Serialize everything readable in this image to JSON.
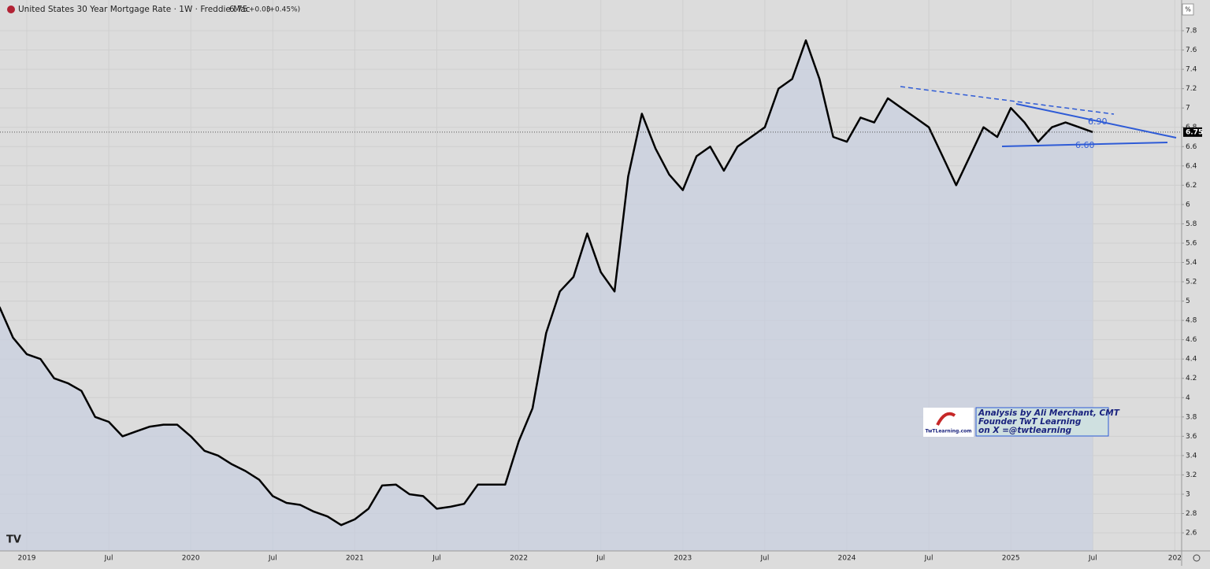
{
  "chart_data": {
    "type": "line",
    "title": "United States 30 Year Mortgage Rate · 1W · Freddie Mac",
    "last_value": 6.75,
    "change": "+0.03",
    "change_pct": "(+0.45%)",
    "unit": "%",
    "annotations": [
      "Analysis by Ali Merchant, CMT",
      "Founder TwT Learning",
      "on X =@twtlearning"
    ],
    "logo_text": "TwTLearning.com",
    "trendline_labels": [
      "6.90",
      "6.60"
    ],
    "x": [
      "2018-11",
      "2018-12",
      "2019-01",
      "2019-02",
      "2019-03",
      "2019-04",
      "2019-05",
      "2019-06",
      "2019-07",
      "2019-08",
      "2019-09",
      "2019-10",
      "2019-11",
      "2019-12",
      "2020-01",
      "2020-02",
      "2020-03",
      "2020-04",
      "2020-05",
      "2020-06",
      "2020-07",
      "2020-08",
      "2020-09",
      "2020-10",
      "2020-11",
      "2020-12",
      "2021-01",
      "2021-02",
      "2021-03",
      "2021-04",
      "2021-05",
      "2021-06",
      "2021-07",
      "2021-08",
      "2021-09",
      "2021-10",
      "2021-11",
      "2021-12",
      "2022-01",
      "2022-02",
      "2022-03",
      "2022-04",
      "2022-05",
      "2022-06",
      "2022-07",
      "2022-08",
      "2022-09",
      "2022-10",
      "2022-11",
      "2022-12",
      "2023-01",
      "2023-02",
      "2023-03",
      "2023-04",
      "2023-05",
      "2023-06",
      "2023-07",
      "2023-08",
      "2023-09",
      "2023-10",
      "2023-11",
      "2023-12",
      "2024-01",
      "2024-02",
      "2024-03",
      "2024-04",
      "2024-05",
      "2024-06",
      "2024-07",
      "2024-08",
      "2024-09",
      "2024-10",
      "2024-11",
      "2024-12",
      "2025-01",
      "2025-02",
      "2025-03",
      "2025-04",
      "2025-05",
      "2025-06",
      "2025-07"
    ],
    "series": [
      {
        "name": "United States 30 Year Mortgage Rate",
        "color": "#000000",
        "values": [
          4.94,
          4.62,
          4.45,
          4.4,
          4.2,
          4.15,
          4.07,
          3.8,
          3.75,
          3.6,
          3.65,
          3.7,
          3.72,
          3.72,
          3.6,
          3.45,
          3.4,
          3.31,
          3.24,
          3.15,
          2.98,
          2.91,
          2.89,
          2.82,
          2.77,
          2.68,
          2.74,
          2.85,
          3.09,
          3.1,
          3.0,
          2.98,
          2.85,
          2.87,
          2.9,
          3.1,
          3.1,
          3.1,
          3.55,
          3.89,
          4.67,
          5.1,
          5.25,
          5.7,
          5.3,
          5.1,
          6.29,
          6.94,
          6.58,
          6.31,
          6.15,
          6.5,
          6.6,
          6.35,
          6.6,
          6.7,
          6.8,
          7.2,
          7.3,
          7.7,
          7.3,
          6.7,
          6.65,
          6.9,
          6.85,
          7.1,
          7.0,
          6.9,
          6.8,
          6.5,
          6.2,
          6.5,
          6.8,
          6.7,
          7.0,
          6.85,
          6.65,
          6.8,
          6.85,
          6.8,
          6.75
        ]
      }
    ],
    "area_color": "#c8cedf",
    "ylim": [
      2.413,
      8.118
    ],
    "yticks": [
      2.6,
      2.8,
      3,
      3.2,
      3.4,
      3.6,
      3.8,
      4,
      4.2,
      4.4,
      4.6,
      4.8,
      5,
      5.2,
      5.4,
      5.6,
      5.8,
      6,
      6.2,
      6.4,
      6.6,
      6.8,
      7,
      7.2,
      7.4,
      7.6,
      7.8
    ],
    "xticks": [
      {
        "value": "2019-01",
        "label": "2019"
      },
      {
        "value": "2019-07",
        "label": "Jul"
      },
      {
        "value": "2020-01",
        "label": "2020"
      },
      {
        "value": "2020-07",
        "label": "Jul"
      },
      {
        "value": "2021-01",
        "label": "2021"
      },
      {
        "value": "2021-07",
        "label": "Jul"
      },
      {
        "value": "2022-01",
        "label": "2022"
      },
      {
        "value": "2022-07",
        "label": "Jul"
      },
      {
        "value": "2023-01",
        "label": "2023"
      },
      {
        "value": "2023-07",
        "label": "Jul"
      },
      {
        "value": "2024-01",
        "label": "2024"
      },
      {
        "value": "2024-07",
        "label": "Jul"
      },
      {
        "value": "2025-01",
        "label": "2025"
      },
      {
        "value": "2025-07",
        "label": "Jul"
      },
      {
        "value": "2026-01",
        "label": "202"
      }
    ],
    "grid": true
  }
}
